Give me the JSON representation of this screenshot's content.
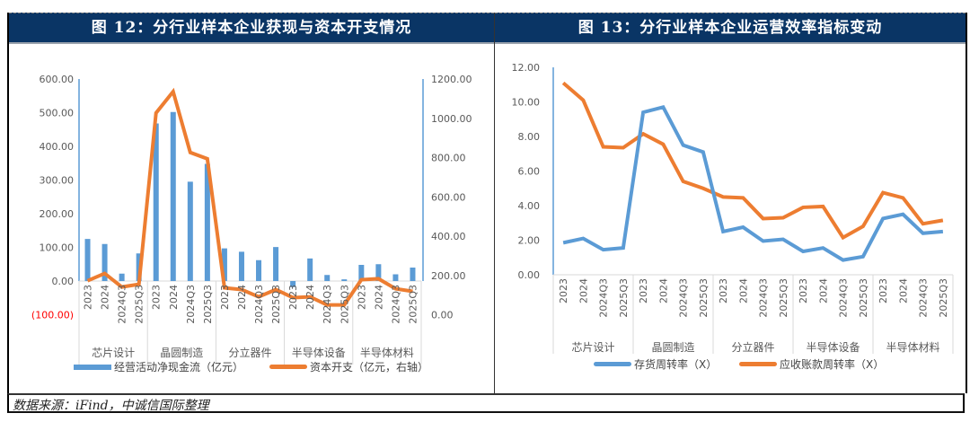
{
  "figure12": {
    "title": "图 12：分行业样本企业获现与资本开支情况",
    "legend": {
      "bar_label": "经营活动净现金流（亿元）",
      "line_label": "资本开支（亿元，右轴）"
    }
  },
  "figure13": {
    "title": "图 13：分行业样本企业运营效率指标变动",
    "legend": {
      "inventory_label": "存货周转率（X）",
      "receivable_label": "应收账款周转率（X）"
    }
  },
  "source": "数据来源：iFind，中诚信国际整理",
  "colors": {
    "blue": "#5b9bd5",
    "orange": "#ed7d31",
    "title_bg": "#0a3565",
    "negative": "#ff0000"
  },
  "chart_data": [
    {
      "type": "bar",
      "name": "figure12",
      "groups": [
        "芯片设计",
        "晶圆制造",
        "分立器件",
        "半导体设备",
        "半导体材料"
      ],
      "periods": [
        "2023",
        "2024",
        "2024Q3",
        "2025Q3"
      ],
      "left_axis": {
        "ylim": [
          -100,
          600
        ],
        "ticks": [
          "(100.00)",
          "0.00",
          "100.00",
          "200.00",
          "300.00",
          "400.00",
          "500.00",
          "600.00"
        ],
        "tick_values": [
          -100,
          0,
          100,
          200,
          300,
          400,
          500,
          600
        ]
      },
      "right_axis": {
        "ylim": [
          0,
          1200
        ],
        "ticks": [
          "0.00",
          "200.00",
          "400.00",
          "600.00",
          "800.00",
          "1000.00",
          "1200.00"
        ],
        "tick_values": [
          0,
          200,
          400,
          600,
          800,
          1000,
          1200
        ]
      },
      "series": [
        {
          "name": "经营活动净现金流（亿元）",
          "kind": "bar",
          "axis": "left",
          "values": [
            125,
            110,
            22,
            82,
            468,
            502,
            295,
            348,
            97,
            87,
            62,
            101,
            -18,
            67,
            18,
            5,
            48,
            50,
            20,
            40
          ]
        },
        {
          "name": "资本开支（亿元，右轴）",
          "kind": "line",
          "axis": "right",
          "values": [
            173,
            210,
            141,
            155,
            1027,
            1136,
            826,
            794,
            137,
            128,
            91,
            128,
            87,
            91,
            50,
            50,
            178,
            183,
            132,
            119
          ]
        }
      ]
    },
    {
      "type": "line",
      "name": "figure13",
      "groups": [
        "芯片设计",
        "晶圆制造",
        "分立器件",
        "半导体设备",
        "半导体材料"
      ],
      "periods": [
        "2023",
        "2024",
        "2024Q3",
        "2025Q3"
      ],
      "y_axis": {
        "ylim": [
          0,
          12
        ],
        "ticks": [
          "0.00",
          "2.00",
          "4.00",
          "6.00",
          "8.00",
          "10.00",
          "12.00"
        ],
        "tick_values": [
          0,
          2,
          4,
          6,
          8,
          10,
          12
        ]
      },
      "series": [
        {
          "name": "存货周转率（X）",
          "values": [
            1.85,
            2.1,
            1.45,
            1.55,
            9.4,
            9.7,
            7.5,
            7.1,
            2.5,
            2.75,
            1.95,
            2.05,
            1.35,
            1.55,
            0.85,
            1.05,
            3.25,
            3.5,
            2.4,
            2.5
          ]
        },
        {
          "name": "应收账款周转率（X）",
          "values": [
            11.1,
            10.1,
            7.4,
            7.35,
            8.15,
            7.55,
            5.4,
            5.0,
            4.5,
            4.45,
            3.25,
            3.3,
            3.9,
            3.95,
            2.15,
            2.8,
            4.75,
            4.45,
            2.95,
            3.15
          ]
        }
      ]
    }
  ]
}
